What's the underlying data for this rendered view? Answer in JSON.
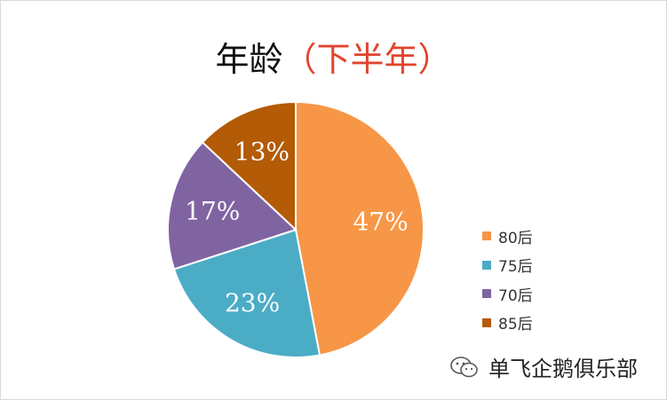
{
  "chart_data": {
    "type": "pie",
    "title": "年龄",
    "subtitle": "（下半年）",
    "categories": [
      "80后",
      "75后",
      "70后",
      "85后"
    ],
    "values": [
      47,
      23,
      17,
      13
    ],
    "labels": [
      "47%",
      "23%",
      "17%",
      "13%"
    ],
    "colors": [
      "#f79646",
      "#4bacc6",
      "#8064a2",
      "#b35b06"
    ],
    "start_angle_deg": 0,
    "direction": "clockwise",
    "legend_position": "right"
  },
  "watermark": {
    "text": "单飞企鹅俱乐部",
    "icon": "wechat-icon"
  }
}
